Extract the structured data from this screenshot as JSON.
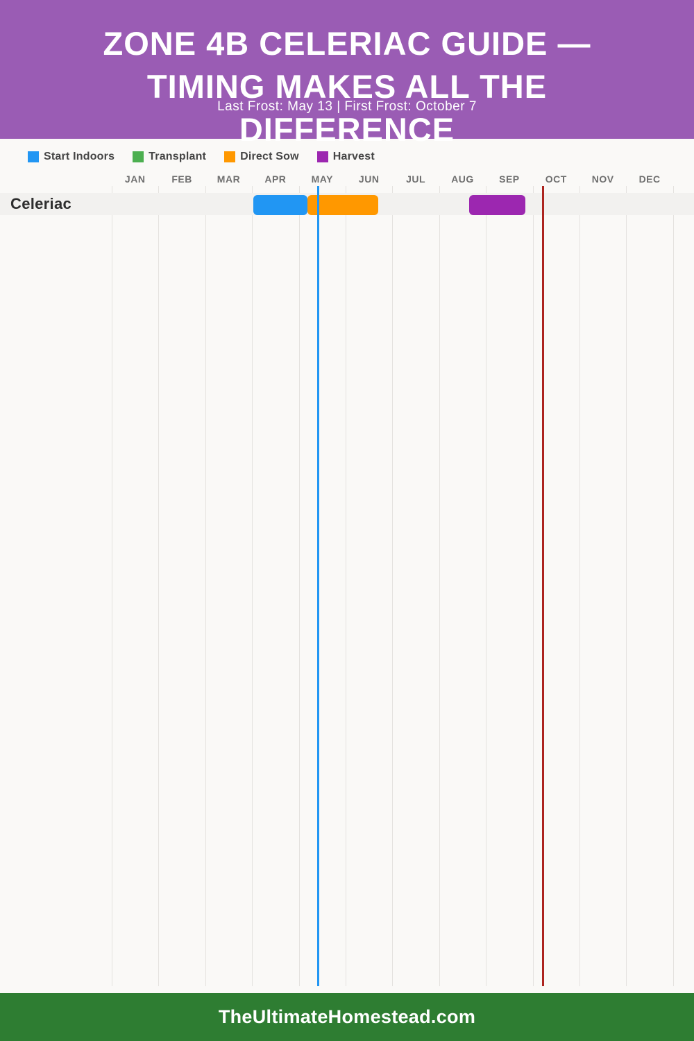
{
  "header": {
    "title_lines": [
      "ZONE 4B CELERIAC GUIDE —",
      "TIMING MAKES ALL THE",
      "DIFFERENCE"
    ],
    "subtitle": "Last Frost: May 13 | First Frost: October 7",
    "background": "#9a5cb4",
    "text_color": "#ffffff"
  },
  "legend": {
    "items": [
      {
        "label": "Start Indoors",
        "color": "#2196f3"
      },
      {
        "label": "Transplant",
        "color": "#4caf50"
      },
      {
        "label": "Direct Sow",
        "color": "#ff9800"
      },
      {
        "label": "Harvest",
        "color": "#9c27b0"
      }
    ]
  },
  "chart_data": {
    "type": "bar",
    "subtype": "gantt-planting-calendar",
    "title": "Zone 4b Celeriac Guide — Timing Makes All the Difference",
    "months": [
      "JAN",
      "FEB",
      "MAR",
      "APR",
      "MAY",
      "JUN",
      "JUL",
      "AUG",
      "SEP",
      "OCT",
      "NOV",
      "DEC"
    ],
    "x_axis": {
      "min": 0,
      "max": 12,
      "unit": "months"
    },
    "grid": true,
    "legend_position": "top",
    "rows": [
      {
        "name": "Celeriac",
        "segments": [
          {
            "label": "Start Indoors",
            "color": "#2196f3",
            "start_month_frac": 3.03,
            "end_month_frac": 4.19,
            "start_date": "Apr 1",
            "end_date": "May 6"
          },
          {
            "label": "Direct Sow",
            "color": "#ff9800",
            "start_month_frac": 4.19,
            "end_month_frac": 5.7,
            "start_date": "May 6",
            "end_date": "Jun 21"
          },
          {
            "label": "Harvest",
            "color": "#9c27b0",
            "start_month_frac": 7.64,
            "end_month_frac": 8.85,
            "start_date": "Aug 20",
            "end_date": "Sep 26"
          }
        ]
      }
    ],
    "frost_lines": [
      {
        "label": "Last Frost: May 13",
        "month_frac": 4.42,
        "color": "#2196f3"
      },
      {
        "label": "First Frost: October 7",
        "month_frac": 9.22,
        "color": "#ad241f"
      }
    ]
  },
  "footer": {
    "site": "TheUltimateHomestead.com",
    "background": "#2e7d32"
  }
}
